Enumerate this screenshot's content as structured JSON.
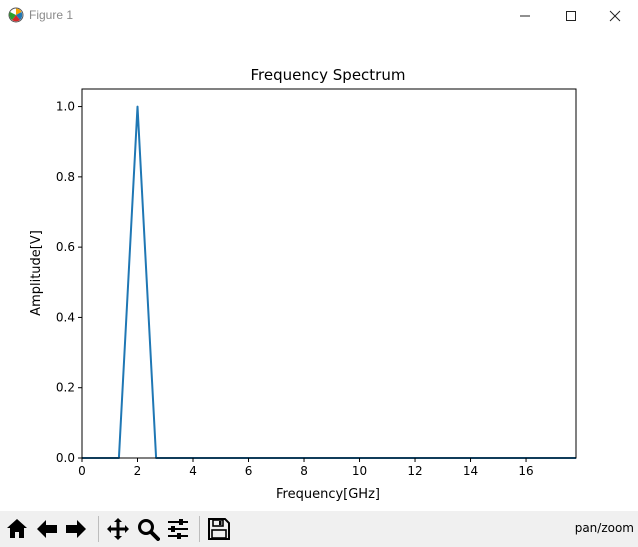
{
  "window": {
    "title": "Figure 1"
  },
  "toolbar": {
    "buttons": [
      {
        "name": "home-icon"
      },
      {
        "name": "back-arrow-icon"
      },
      {
        "name": "forward-arrow-icon"
      },
      {
        "name": "pan-icon"
      },
      {
        "name": "zoom-icon"
      },
      {
        "name": "configure-subplots-icon"
      },
      {
        "name": "save-icon"
      }
    ],
    "status": "pan/zoom"
  },
  "chart_data": {
    "type": "line",
    "title": "Frequency Spectrum",
    "xlabel": "Frequency[GHz]",
    "ylabel": "Amplitude[V]",
    "xlim": [
      0,
      17.8
    ],
    "ylim": [
      0,
      1.05
    ],
    "xticks": [
      "0",
      "2",
      "4",
      "6",
      "8",
      "10",
      "12",
      "14",
      "16"
    ],
    "yticks": [
      "0.0",
      "0.2",
      "0.4",
      "0.6",
      "0.8",
      "1.0"
    ],
    "grid": false,
    "line_color": "#1f77b4",
    "series": [
      {
        "x": [
          0,
          1.33,
          2.0,
          2.67,
          17.8
        ],
        "values": [
          0,
          0,
          1.0,
          0,
          0
        ]
      }
    ]
  }
}
